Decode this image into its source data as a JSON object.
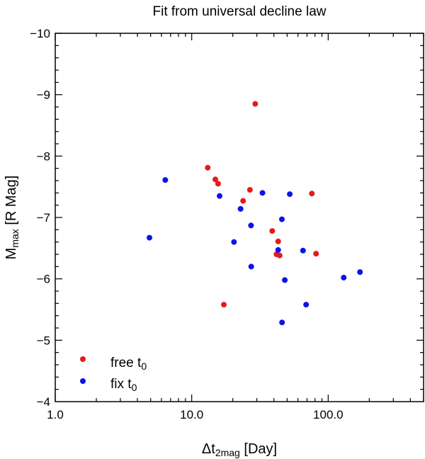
{
  "chart_data": {
    "type": "scatter",
    "title": "Fit from universal decline law",
    "xlabel_main": "Δt",
    "xlabel_sub": "2mag",
    "xlabel_unit": " [Day]",
    "ylabel_main": "M",
    "ylabel_sub": "max",
    "ylabel_unit": " [R Mag]",
    "x_scale": "log",
    "xlim": [
      1.0,
      500.0
    ],
    "ylim": [
      -4,
      -10
    ],
    "y_inverted": true,
    "x_ticks": [
      {
        "value": 1.0,
        "label": "1.0"
      },
      {
        "value": 10.0,
        "label": "10.0"
      },
      {
        "value": 100.0,
        "label": "100.0"
      }
    ],
    "y_ticks": [
      {
        "value": -10,
        "label": "−10"
      },
      {
        "value": -9,
        "label": "−9"
      },
      {
        "value": -8,
        "label": "−8"
      },
      {
        "value": -7,
        "label": "−7"
      },
      {
        "value": -6,
        "label": "−6"
      },
      {
        "value": -5,
        "label": "−5"
      },
      {
        "value": -4,
        "label": "−4"
      }
    ],
    "grid": false,
    "legend_position": "bottom-left",
    "series": [
      {
        "name": "free t",
        "name_sub": "0",
        "color": "#e8191b",
        "points": [
          {
            "x": 13.1,
            "y": -7.81
          },
          {
            "x": 14.9,
            "y": -7.62
          },
          {
            "x": 15.6,
            "y": -7.55
          },
          {
            "x": 17.2,
            "y": -5.58
          },
          {
            "x": 23.8,
            "y": -7.27
          },
          {
            "x": 26.7,
            "y": -7.45
          },
          {
            "x": 29.2,
            "y": -8.85
          },
          {
            "x": 38.9,
            "y": -6.78
          },
          {
            "x": 41.8,
            "y": -6.4
          },
          {
            "x": 43.0,
            "y": -6.61
          },
          {
            "x": 44.1,
            "y": -6.38
          },
          {
            "x": 75.9,
            "y": -7.39
          },
          {
            "x": 81.5,
            "y": -6.41
          }
        ]
      },
      {
        "name": "fix t",
        "name_sub": "0",
        "color": "#0a14e6",
        "points": [
          {
            "x": 4.9,
            "y": -6.67
          },
          {
            "x": 6.4,
            "y": -7.61
          },
          {
            "x": 16.0,
            "y": -7.35
          },
          {
            "x": 20.4,
            "y": -6.6
          },
          {
            "x": 22.8,
            "y": -7.14
          },
          {
            "x": 27.2,
            "y": -6.87
          },
          {
            "x": 27.3,
            "y": -6.2
          },
          {
            "x": 33.0,
            "y": -7.4
          },
          {
            "x": 43.0,
            "y": -6.47
          },
          {
            "x": 45.8,
            "y": -6.97
          },
          {
            "x": 45.9,
            "y": -5.29
          },
          {
            "x": 48.1,
            "y": -5.98
          },
          {
            "x": 52.3,
            "y": -7.38
          },
          {
            "x": 65.4,
            "y": -6.46
          },
          {
            "x": 68.9,
            "y": -5.58
          },
          {
            "x": 130.0,
            "y": -6.02
          },
          {
            "x": 171.0,
            "y": -6.11
          }
        ]
      }
    ]
  }
}
